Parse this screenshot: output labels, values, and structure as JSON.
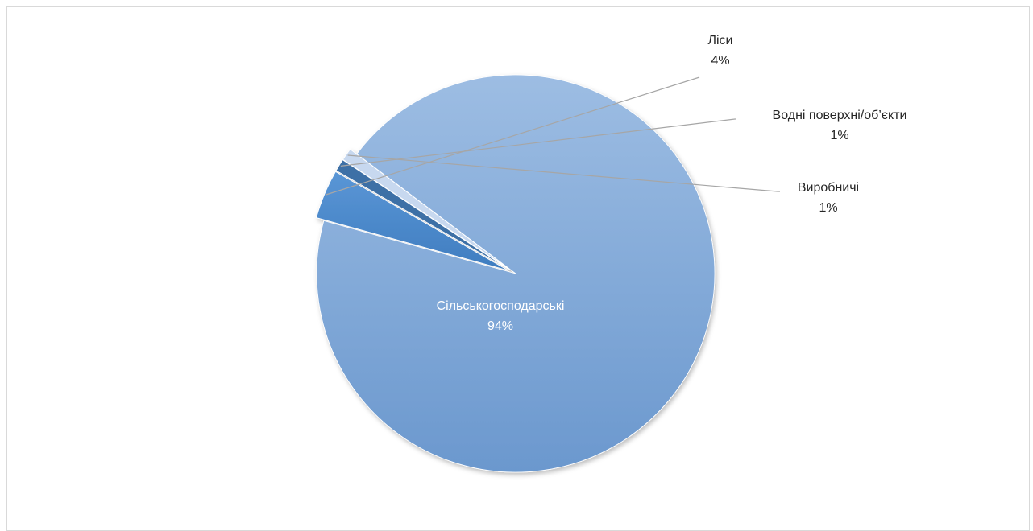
{
  "chart_data": {
    "type": "pie",
    "categories": [
      "Сільськогосподарські",
      "Ліси",
      "Водні поверхні/об’єкти",
      "Виробничі"
    ],
    "values": [
      94,
      4,
      1,
      1
    ],
    "labels": [
      "94%",
      "4%",
      "1%",
      "1%"
    ],
    "exploded": [
      "Ліси",
      "Водні поверхні/об’єкти",
      "Виробничі"
    ],
    "colors": [
      "#7FA8DA",
      "#4A86C8",
      "#3E6FA6",
      "#C7D8EF"
    ],
    "grid": false,
    "legend": "none"
  }
}
